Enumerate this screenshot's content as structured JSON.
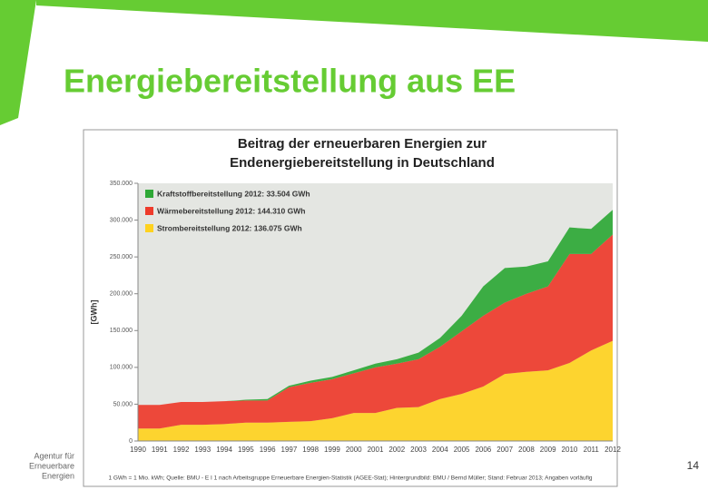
{
  "slide": {
    "title": "Energiebereitstellung aus EE",
    "agency": [
      "Agentur für",
      "Erneuerbare",
      "Energien"
    ],
    "page_number": "14"
  },
  "chart_data": {
    "type": "stacked_area",
    "title": [
      "Beitrag der erneuerbaren Energien zur",
      "Endenergiebereitstellung in Deutschland"
    ],
    "ylabel": "[GWh]",
    "footnote": "1 GWh = 1 Mio. kWh; Quelle: BMU - E I 1 nach Arbeitsgruppe Erneuerbare Energien-Statistik (AGEE-Stat); Hintergrundbild: BMU / Bernd Müller; Stand: Februar 2013; Angaben vorläufig",
    "categories": [
      "1990",
      "1991",
      "1992",
      "1993",
      "1994",
      "1995",
      "1996",
      "1997",
      "1998",
      "1999",
      "2000",
      "2001",
      "2002",
      "2003",
      "2004",
      "2005",
      "2006",
      "2007",
      "2008",
      "2009",
      "2010",
      "2011",
      "2012"
    ],
    "series": [
      {
        "name": "Kraftstoffbereitstellung 2012: 33.504 GWh",
        "color": "#2ea836",
        "values": [
          0,
          0,
          0,
          0,
          0,
          1000,
          2000,
          2000,
          3000,
          3000,
          4000,
          5000,
          6000,
          9000,
          12000,
          21000,
          40000,
          47000,
          37000,
          34000,
          36000,
          34000,
          33504
        ]
      },
      {
        "name": "Wärmebereitstellung 2012: 144.310 GWh",
        "color": "#ee3b2b",
        "values": [
          32000,
          32000,
          31000,
          31000,
          31000,
          30000,
          30000,
          47000,
          52000,
          53000,
          54000,
          62000,
          60000,
          65000,
          71000,
          85000,
          96000,
          97000,
          106000,
          114000,
          148000,
          131000,
          144310
        ]
      },
      {
        "name": "Strombereitstellung 2012: 136.075 GWh",
        "color": "#ffd21f",
        "values": [
          17000,
          17000,
          22000,
          22000,
          23000,
          25000,
          25000,
          26000,
          27000,
          31000,
          38000,
          38000,
          45000,
          46000,
          57000,
          64000,
          74000,
          91000,
          94000,
          96000,
          106000,
          123000,
          136075
        ]
      }
    ],
    "ylim": [
      0,
      350000
    ],
    "yticks": [
      {
        "value": 0,
        "label": "0"
      },
      {
        "value": 50000,
        "label": "50.000"
      },
      {
        "value": 100000,
        "label": "100.000"
      },
      {
        "value": 150000,
        "label": "150.000"
      },
      {
        "value": 200000,
        "label": "200.000"
      },
      {
        "value": 250000,
        "label": "250.000"
      },
      {
        "value": 300000,
        "label": "300.000"
      },
      {
        "value": 350000,
        "label": "350.000"
      }
    ]
  }
}
